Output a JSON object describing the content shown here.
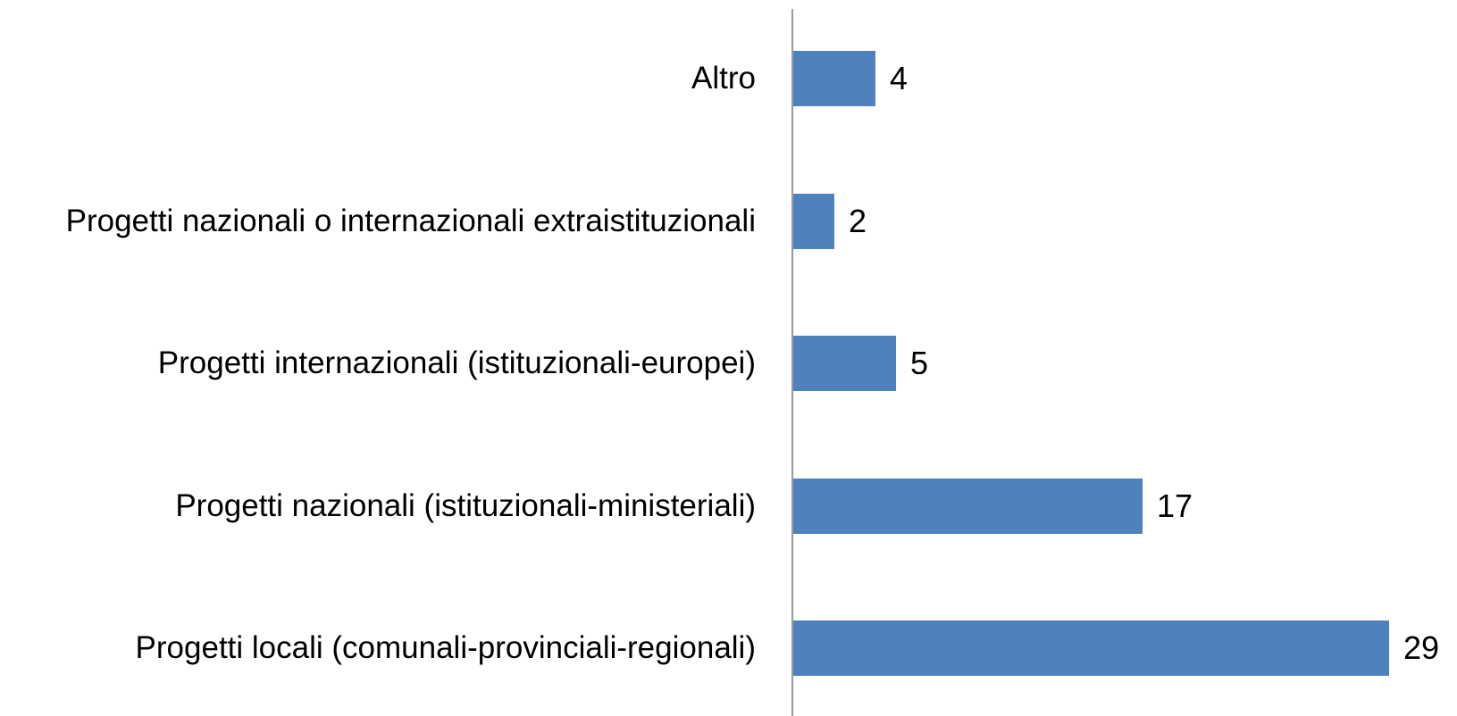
{
  "chart_data": {
    "type": "bar",
    "orientation": "horizontal",
    "categories": [
      "Altro",
      "Progetti nazionali o internazionali extraistituzionali",
      "Progetti internazionali (istituzionali-europei)",
      "Progetti nazionali (istituzionali-ministeriali)",
      "Progetti locali (comunali-provinciali-regionali)"
    ],
    "values": [
      4,
      2,
      5,
      17,
      29
    ],
    "color": "#4f81bd"
  }
}
